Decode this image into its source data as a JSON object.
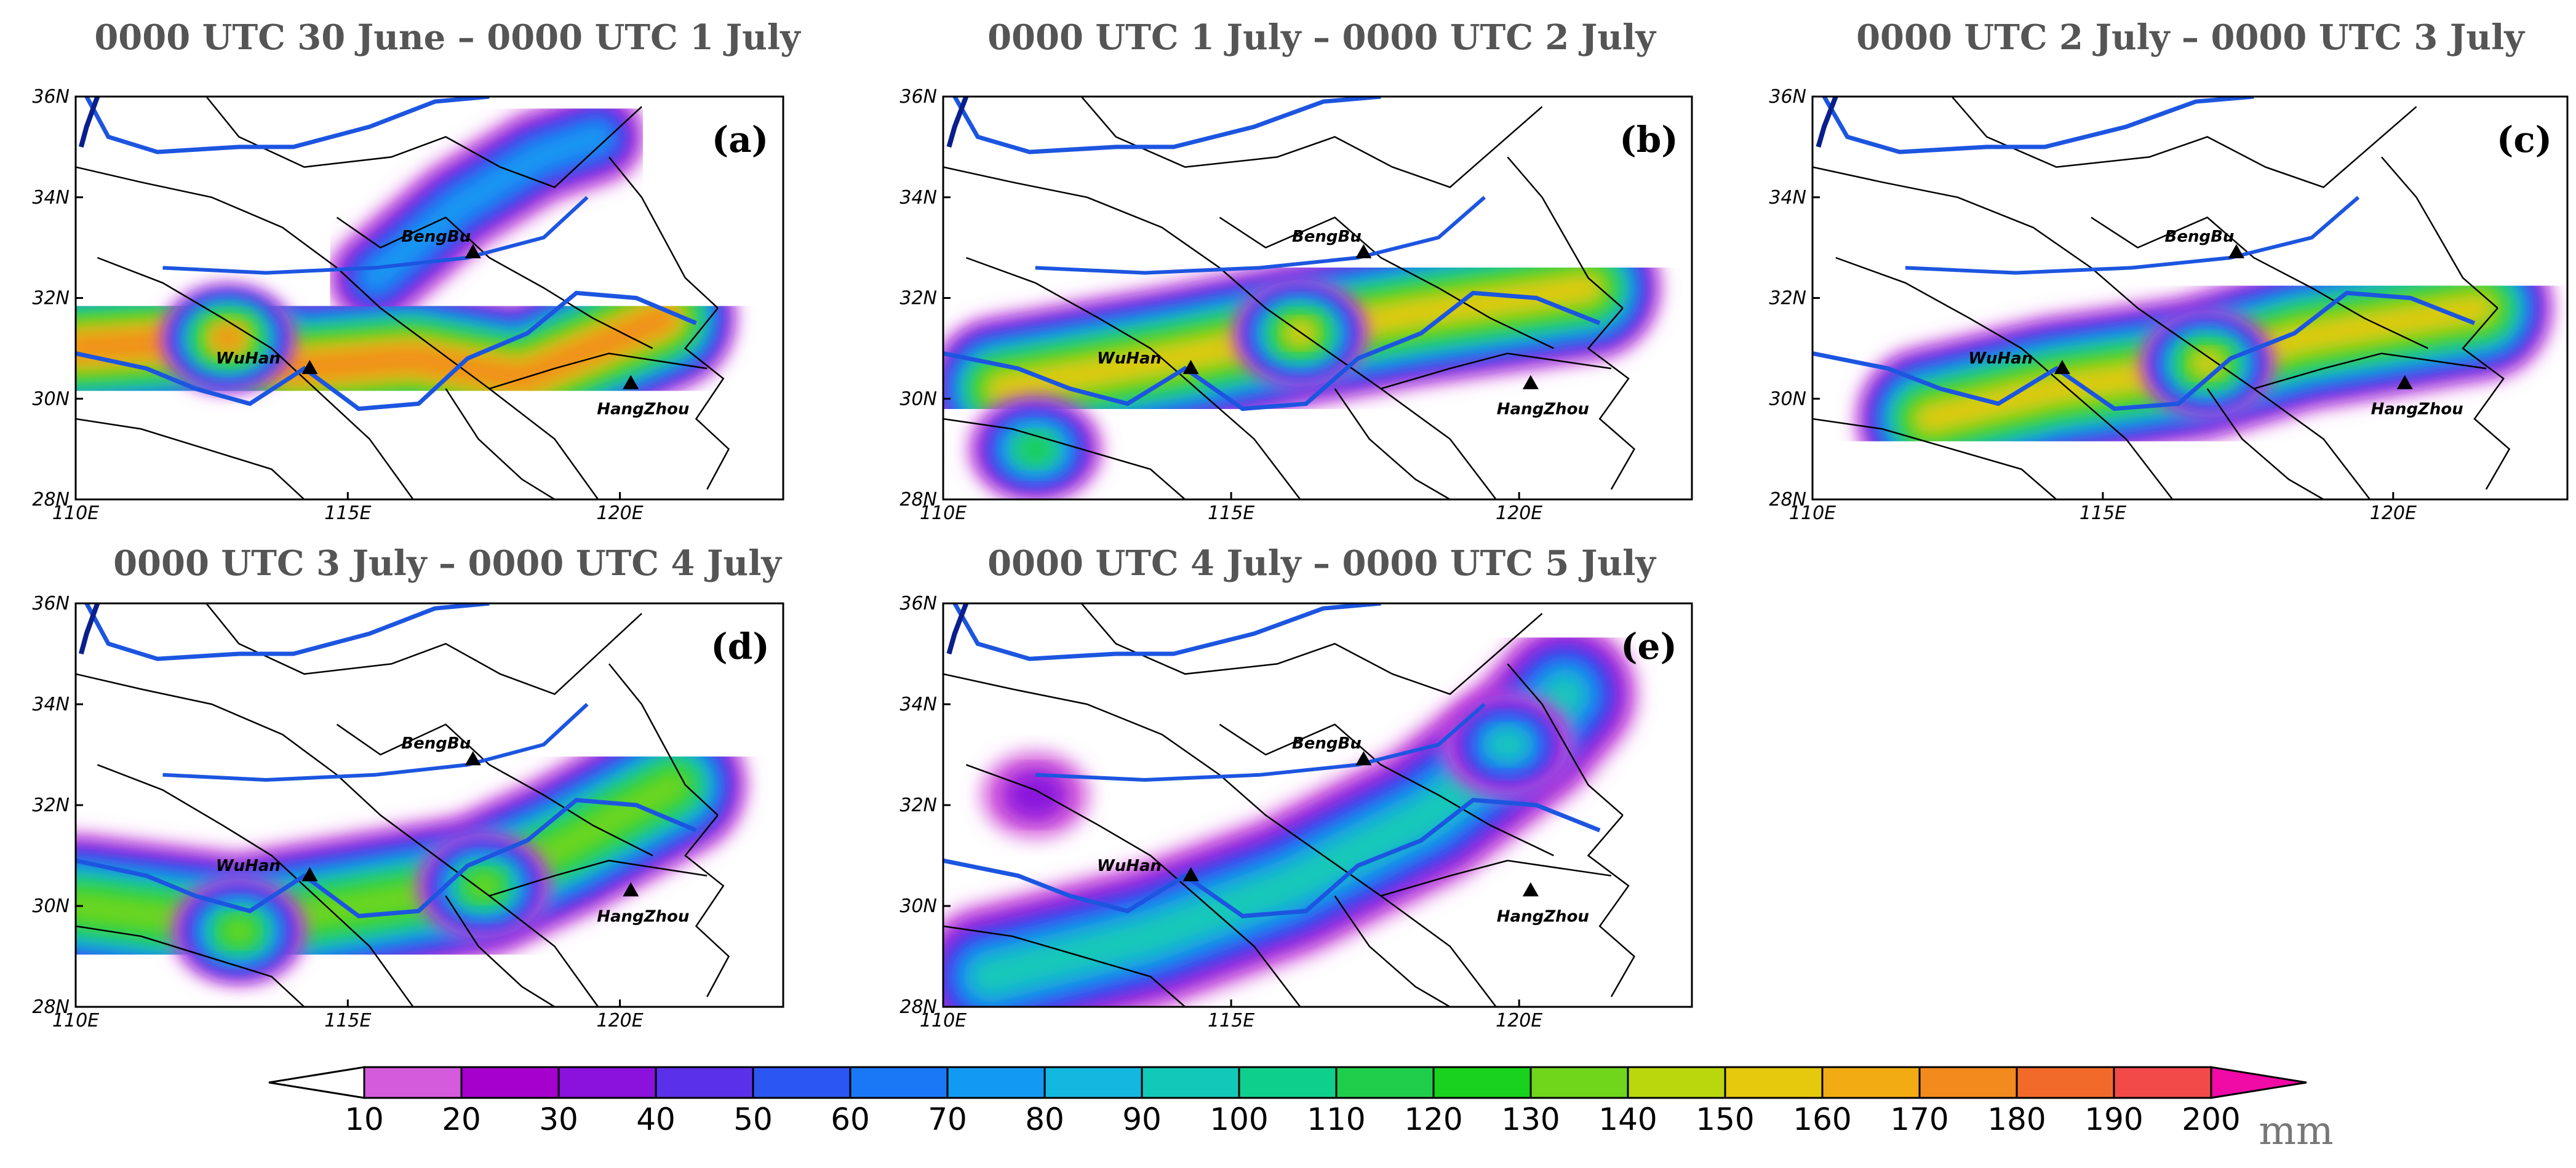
{
  "chart_data": {
    "type": "heatmap",
    "description": "Daily accumulated precipitation maps over the Yangtze-Huai region",
    "panels": [
      {
        "label": "(a)",
        "title": "0000 UTC 30 June – 0000 UTC 1 July",
        "rain_axis": [
          [
            110,
            31
          ],
          [
            112.8,
            31.2
          ],
          [
            114,
            30.6
          ],
          [
            116.2,
            30.8
          ],
          [
            118.2,
            30.4
          ],
          [
            120.8,
            31.6
          ]
        ],
        "peak_mm": 180,
        "peak_location": [
          112.8,
          31.2
        ],
        "north_lobe": [
          [
            115.5,
            32.4
          ],
          [
            117,
            33.8
          ],
          [
            118.5,
            34.8
          ],
          [
            119.6,
            35.2
          ]
        ]
      },
      {
        "label": "(b)",
        "title": "0000 UTC 1 July – 0000 UTC 2 July",
        "rain_axis": [
          [
            111,
            30.2
          ],
          [
            114,
            30.8
          ],
          [
            116.2,
            31.3
          ],
          [
            118.2,
            31.7
          ],
          [
            121.2,
            32.2
          ]
        ],
        "peak_mm": 160,
        "peak_location": [
          116.2,
          31.3
        ],
        "secondary": {
          "location": [
            111.6,
            29
          ],
          "max_mm": 110
        }
      },
      {
        "label": "(c)",
        "title": "0000 UTC 2 July – 0000 UTC 3 July",
        "rain_axis": [
          [
            112,
            29.6
          ],
          [
            114.2,
            30.2
          ],
          [
            116.6,
            30.6
          ],
          [
            118.4,
            31.2
          ],
          [
            121.5,
            31.8
          ]
        ],
        "peak_mm": 150,
        "peak_location": [
          116.8,
          30.7
        ]
      },
      {
        "label": "(d)",
        "title": "0000 UTC 3 July – 0000 UTC 4 July",
        "rain_axis": [
          [
            110,
            30
          ],
          [
            113,
            29.6
          ],
          [
            115.2,
            30
          ],
          [
            117.4,
            30.4
          ],
          [
            119,
            31.2
          ],
          [
            121,
            32.4
          ]
        ],
        "peak_mm": 140,
        "peak_location": [
          113,
          29.5
        ],
        "secondary": {
          "location": [
            117.5,
            30.4
          ],
          "max_mm": 130
        }
      },
      {
        "label": "(e)",
        "title": "0000 UTC 4 July – 0000 UTC 5 July",
        "rain_axis": [
          [
            110.8,
            28.6
          ],
          [
            113.6,
            29.4
          ],
          [
            116,
            30.4
          ],
          [
            118.4,
            31.8
          ],
          [
            120.2,
            33.4
          ],
          [
            120.8,
            34.2
          ]
        ],
        "peak_mm": 90,
        "peak_location": [
          119.8,
          33.2
        ],
        "isolated": {
          "location": [
            111.6,
            32.2
          ],
          "max_mm": 30
        }
      }
    ],
    "map": {
      "lon_range": [
        110,
        123
      ],
      "lat_range": [
        28,
        36
      ],
      "x_ticks": [
        "110E",
        "115E",
        "120E"
      ],
      "y_ticks": [
        "28N",
        "30N",
        "32N",
        "34N",
        "36N"
      ],
      "x_tick_values": [
        110,
        115,
        120
      ],
      "y_tick_values": [
        28,
        30,
        32,
        34,
        36
      ]
    },
    "cities": [
      {
        "name": "BengBu",
        "lon": 117.3,
        "lat": 32.9
      },
      {
        "name": "WuHan",
        "lon": 114.3,
        "lat": 30.6
      },
      {
        "name": "HangZhou",
        "lon": 120.2,
        "lat": 30.3
      }
    ],
    "colorbar": {
      "levels": [
        10,
        20,
        30,
        40,
        50,
        60,
        70,
        80,
        90,
        100,
        110,
        120,
        130,
        140,
        150,
        160,
        170,
        180,
        190,
        200
      ],
      "colors": [
        "#d45bdb",
        "#a600cf",
        "#8a12dc",
        "#5b30ea",
        "#2c56f2",
        "#1a78f7",
        "#129af2",
        "#12b8e0",
        "#12c9b8",
        "#0fcf8c",
        "#1fcf4b",
        "#18d21e",
        "#6fd61c",
        "#bad70e",
        "#e6c90d",
        "#f2ab12",
        "#f28a1d",
        "#f26a2a",
        "#f24a48",
        "#f2207e",
        "#f00aa6"
      ],
      "unit": "mm"
    }
  }
}
